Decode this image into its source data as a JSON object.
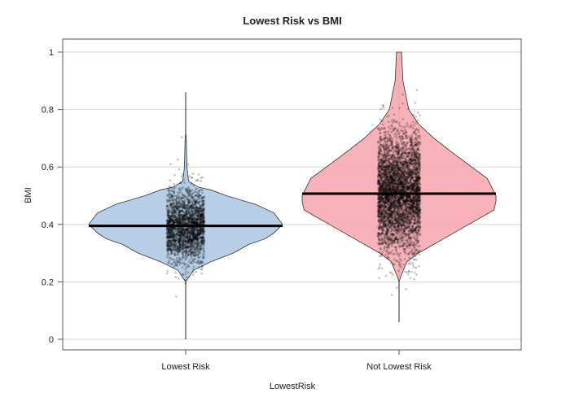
{
  "chart_data": {
    "type": "violin",
    "title": "Lowest Risk vs BMI",
    "xlabel": "LowestRisk",
    "ylabel": "BMI",
    "ylim": [
      0,
      1
    ],
    "yticks": [
      "0",
      "0.2",
      "0.4",
      "0.6",
      "0.8",
      "1"
    ],
    "grid": true,
    "categories": [
      "Lowest Risk",
      "Not Lowest Risk"
    ],
    "groups": [
      {
        "category": "Lowest Risk",
        "color": "#b3cbe5",
        "median": 0.395,
        "min": 0.0,
        "max": 0.86,
        "density_profile": [
          [
            0.2,
            0
          ],
          [
            0.21,
            0.02
          ],
          [
            0.24,
            0.08
          ],
          [
            0.27,
            0.26
          ],
          [
            0.3,
            0.49
          ],
          [
            0.33,
            0.65
          ],
          [
            0.35,
            0.82
          ],
          [
            0.37,
            0.91
          ],
          [
            0.4,
            1.0
          ],
          [
            0.44,
            0.91
          ],
          [
            0.47,
            0.72
          ],
          [
            0.5,
            0.42
          ],
          [
            0.52,
            0.26
          ],
          [
            0.53,
            0.13
          ],
          [
            0.55,
            0.03
          ],
          [
            0.6,
            0.013
          ],
          [
            0.7,
            0.006
          ],
          [
            0.72,
            0
          ]
        ]
      },
      {
        "category": "Not Lowest Risk",
        "color": "#f7adb4",
        "median": 0.507,
        "min": 0.06,
        "max": 1.0,
        "density_profile": [
          [
            0.2,
            0
          ],
          [
            0.22,
            0.02
          ],
          [
            0.27,
            0.08
          ],
          [
            0.3,
            0.2
          ],
          [
            0.35,
            0.46
          ],
          [
            0.4,
            0.72
          ],
          [
            0.45,
            0.98
          ],
          [
            0.48,
            1.0
          ],
          [
            0.5,
            1.0
          ],
          [
            0.56,
            0.91
          ],
          [
            0.6,
            0.75
          ],
          [
            0.65,
            0.55
          ],
          [
            0.7,
            0.36
          ],
          [
            0.75,
            0.2
          ],
          [
            0.8,
            0.1
          ],
          [
            0.9,
            0.04
          ],
          [
            1.0,
            0.026
          ]
        ]
      }
    ]
  }
}
